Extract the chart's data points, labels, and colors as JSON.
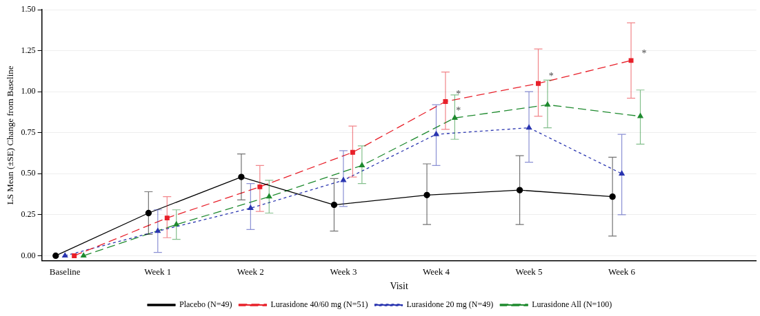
{
  "chart_data": {
    "type": "line",
    "xlabel": "Visit",
    "ylabel": "LS Mean (±SE) Change from Baseline",
    "categories": [
      "Baseline",
      "Week 1",
      "Week 2",
      "Week 3",
      "Week 4",
      "Week 5",
      "Week 6"
    ],
    "ylim": [
      -0.03,
      1.5
    ],
    "yticks": [
      {
        "value": 0,
        "label": "0.00"
      },
      {
        "value": 0.25,
        "label": "0.25"
      },
      {
        "value": 0.5,
        "label": "0.50"
      },
      {
        "value": 0.75,
        "label": "0.75"
      },
      {
        "value": 1,
        "label": "1.00"
      },
      {
        "value": 1.25,
        "label": "1.25"
      },
      {
        "value": 1.5,
        "label": "1.50"
      }
    ],
    "grid": "y",
    "legend": "bottom",
    "series": [
      {
        "name": "Placebo (N=49)",
        "color": "#000000",
        "marker": "circle",
        "line_style": "solid",
        "values": [
          0,
          0.26,
          0.48,
          0.31,
          0.37,
          0.4,
          0.36
        ],
        "errors": [
          null,
          [
            0.13,
            0.39
          ],
          [
            0.34,
            0.62
          ],
          [
            0.15,
            0.47
          ],
          [
            0.19,
            0.56
          ],
          [
            0.19,
            0.61
          ],
          [
            0.12,
            0.6
          ]
        ]
      },
      {
        "name": "Lurasidone 40/60 mg (N=51)",
        "color": "#e8202a",
        "marker": "square",
        "line_style": "dashed",
        "values": [
          0,
          0.23,
          0.42,
          0.63,
          0.94,
          1.05,
          1.19
        ],
        "errors": [
          null,
          [
            0.11,
            0.36
          ],
          [
            0.27,
            0.55
          ],
          [
            0.48,
            0.79
          ],
          [
            0.77,
            1.12
          ],
          [
            0.85,
            1.26
          ],
          [
            0.96,
            1.42
          ]
        ]
      },
      {
        "name": "Lurasidone 20 mg (N=49)",
        "color": "#2a35b0",
        "marker": "triangle",
        "line_style": "dotted",
        "values": [
          0,
          0.15,
          0.29,
          0.46,
          0.74,
          0.78,
          0.5
        ],
        "errors": [
          null,
          [
            0.02,
            0.28
          ],
          [
            0.16,
            0.44
          ],
          [
            0.3,
            0.64
          ],
          [
            0.55,
            0.92
          ],
          [
            0.57,
            1.0
          ],
          [
            0.25,
            0.74
          ]
        ]
      },
      {
        "name": "Lurasidone All (N=100)",
        "color": "#1e8a2e",
        "marker": "triangle",
        "line_style": "dashed",
        "values": [
          0,
          0.19,
          0.36,
          0.55,
          0.84,
          0.92,
          0.85
        ],
        "errors": [
          null,
          [
            0.1,
            0.28
          ],
          [
            0.26,
            0.46
          ],
          [
            0.44,
            0.67
          ],
          [
            0.71,
            0.98
          ],
          [
            0.78,
            1.07
          ],
          [
            0.68,
            1.01
          ]
        ]
      }
    ],
    "annotations": [
      {
        "text": "*",
        "x": "Week 4",
        "y": 0.94
      },
      {
        "text": "*",
        "x": "Week 5",
        "y": 1.05
      },
      {
        "text": "*",
        "x": "Week 6",
        "y": 1.19
      },
      {
        "text": "*",
        "x": "Week 4",
        "y": 0.84
      }
    ]
  }
}
